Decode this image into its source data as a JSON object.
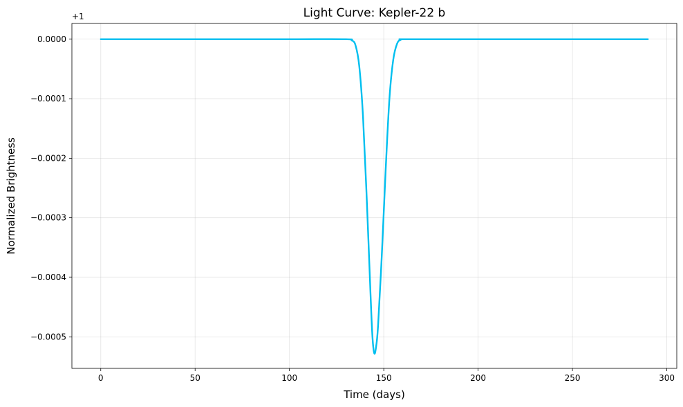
{
  "chart_data": {
    "type": "line",
    "title": "Light Curve: Kepler-22 b",
    "xlabel": "Time (days)",
    "ylabel": "Normalized Brightness",
    "y_offset_label": "+1",
    "xlim": [
      -15.3,
      305.3
    ],
    "ylim": [
      -0.000553,
      2.64e-05
    ],
    "x_ticks": [
      0,
      50,
      100,
      150,
      200,
      250,
      300
    ],
    "x_tick_labels": [
      "0",
      "50",
      "100",
      "150",
      "200",
      "250",
      "300"
    ],
    "y_ticks": [
      0,
      -0.0001,
      -0.0002,
      -0.0003,
      -0.0004,
      -0.0005
    ],
    "y_tick_labels": [
      "0.0000",
      "−0.0001",
      "−0.0002",
      "−0.0003",
      "−0.0004",
      "−0.0005"
    ],
    "grid": true,
    "series": [
      {
        "color": "#00bfef",
        "x": [
          0,
          50,
          100,
          130,
          133,
          135,
          137,
          139,
          141,
          143,
          144,
          145,
          146,
          147,
          149,
          151,
          153,
          155,
          157,
          159,
          162,
          200,
          250,
          290
        ],
        "y": [
          0,
          0,
          0,
          0,
          -2e-06,
          -1e-05,
          -4.5e-05,
          -0.00013,
          -0.00027,
          -0.00043,
          -0.0005,
          -0.000528,
          -0.000515,
          -0.00048,
          -0.00036,
          -0.00022,
          -0.0001,
          -3.5e-05,
          -8e-06,
          -1e-06,
          0,
          0,
          0,
          0
        ]
      }
    ]
  }
}
